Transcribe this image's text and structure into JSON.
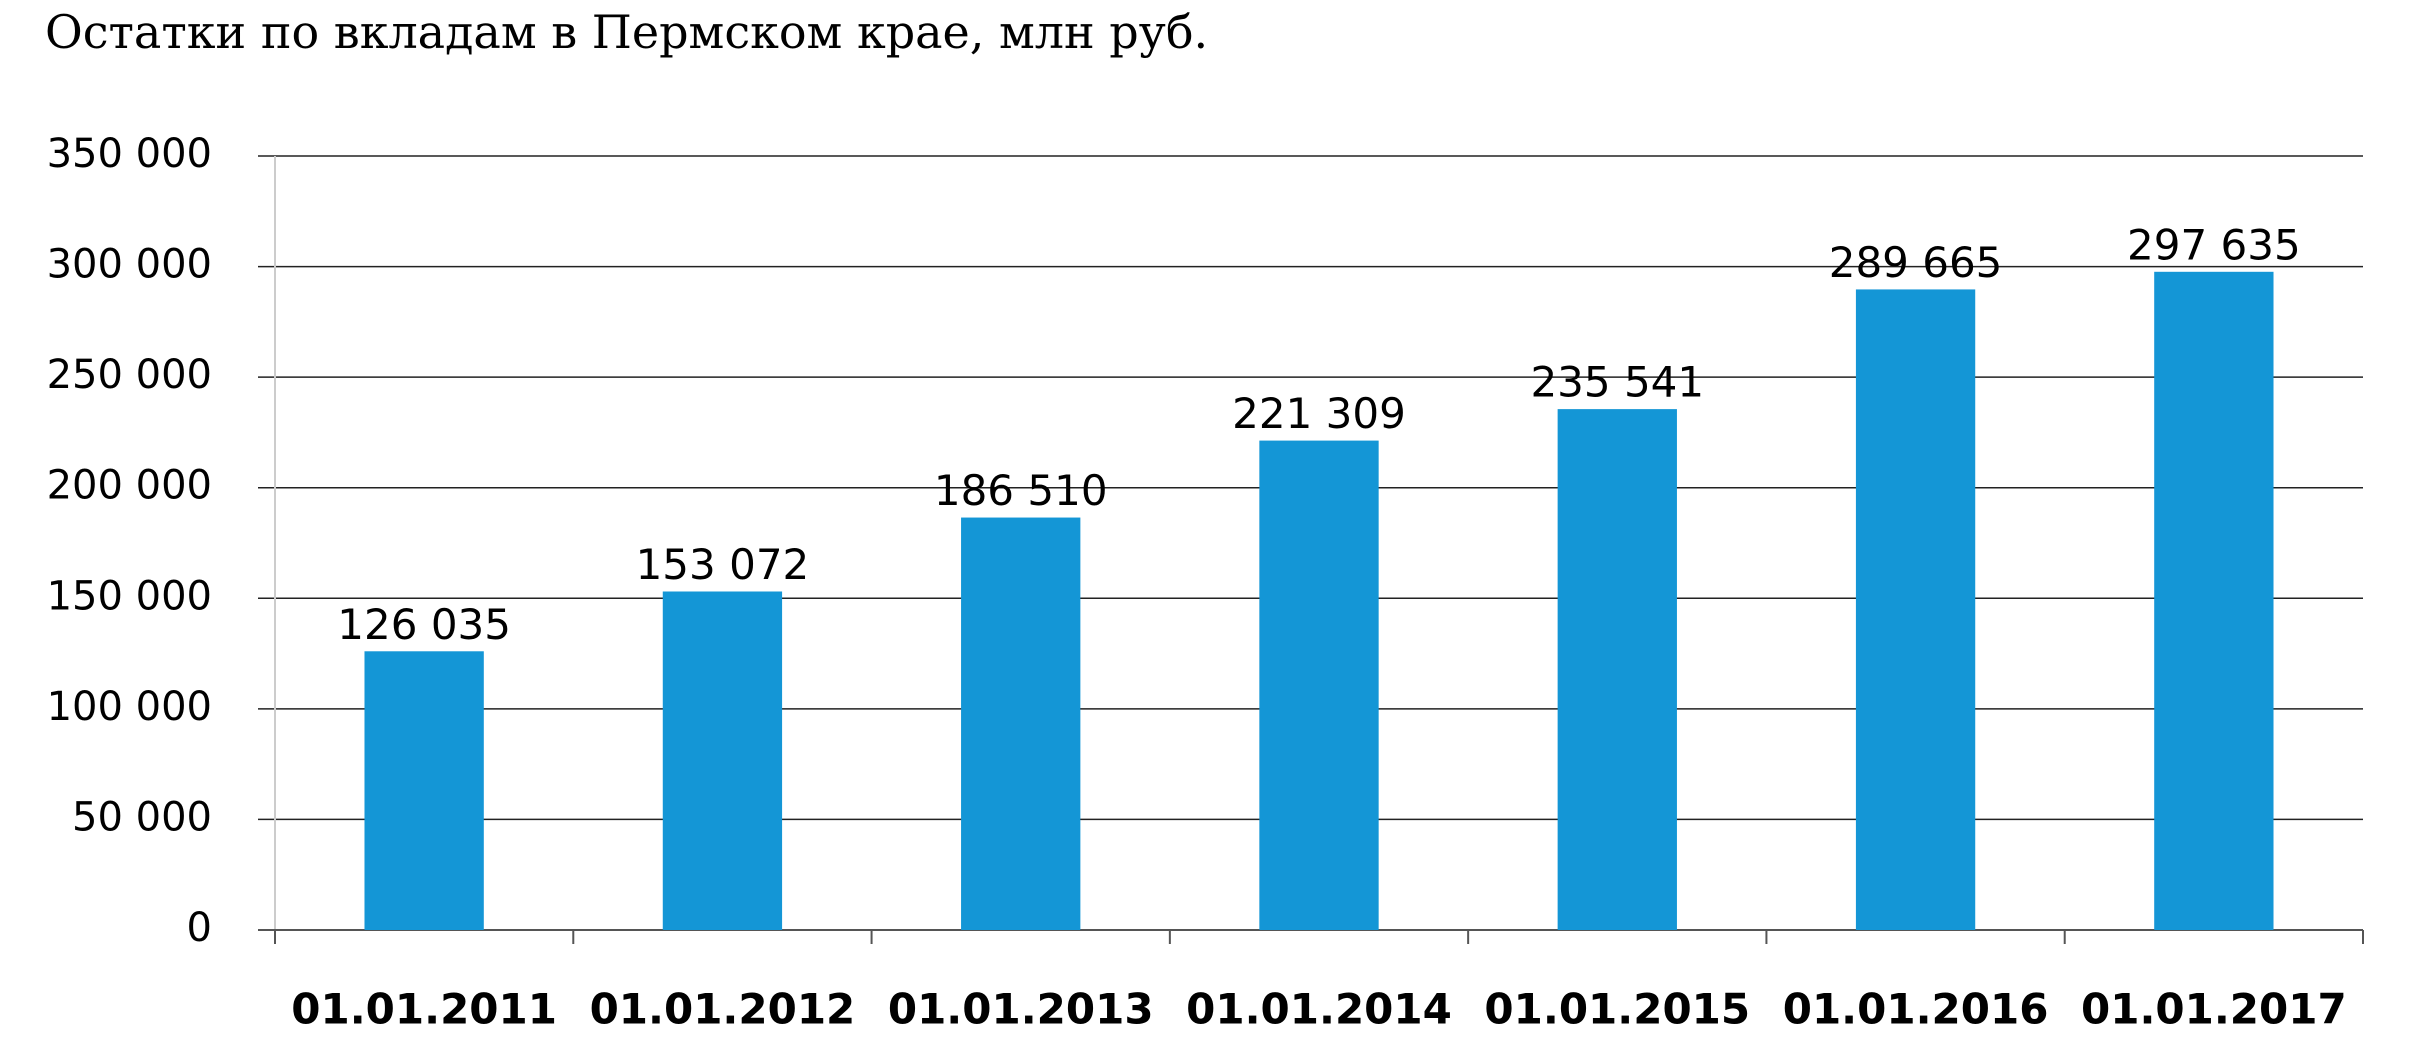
{
  "chart_data": {
    "type": "bar",
    "title": "Остатки по вкладам в Пермском крае, млн руб.",
    "categories": [
      "01.01.2011",
      "01.01.2012",
      "01.01.2013",
      "01.01.2014",
      "01.01.2015",
      "01.01.2016",
      "01.01.2017"
    ],
    "values": [
      126035,
      153072,
      186510,
      221309,
      235541,
      289665,
      297635
    ],
    "value_labels": [
      "126 035",
      "153 072",
      "186 510",
      "221 309",
      "235 541",
      "289 665",
      "297 635"
    ],
    "color": "#1496d6",
    "ylim": [
      0,
      350000
    ],
    "yticks": [
      0,
      {
        "value": 50000,
        "label": "50 000"
      },
      {
        "value": 100000,
        "label": "100 000"
      },
      {
        "value": 150000,
        "label": "150 000"
      },
      {
        "value": 200000,
        "label": "200 000"
      },
      {
        "value": 250000,
        "label": "250 000"
      },
      {
        "value": 300000,
        "label": "300 000"
      },
      {
        "value": 350000,
        "label": "350 000"
      }
    ],
    "grid": true
  }
}
